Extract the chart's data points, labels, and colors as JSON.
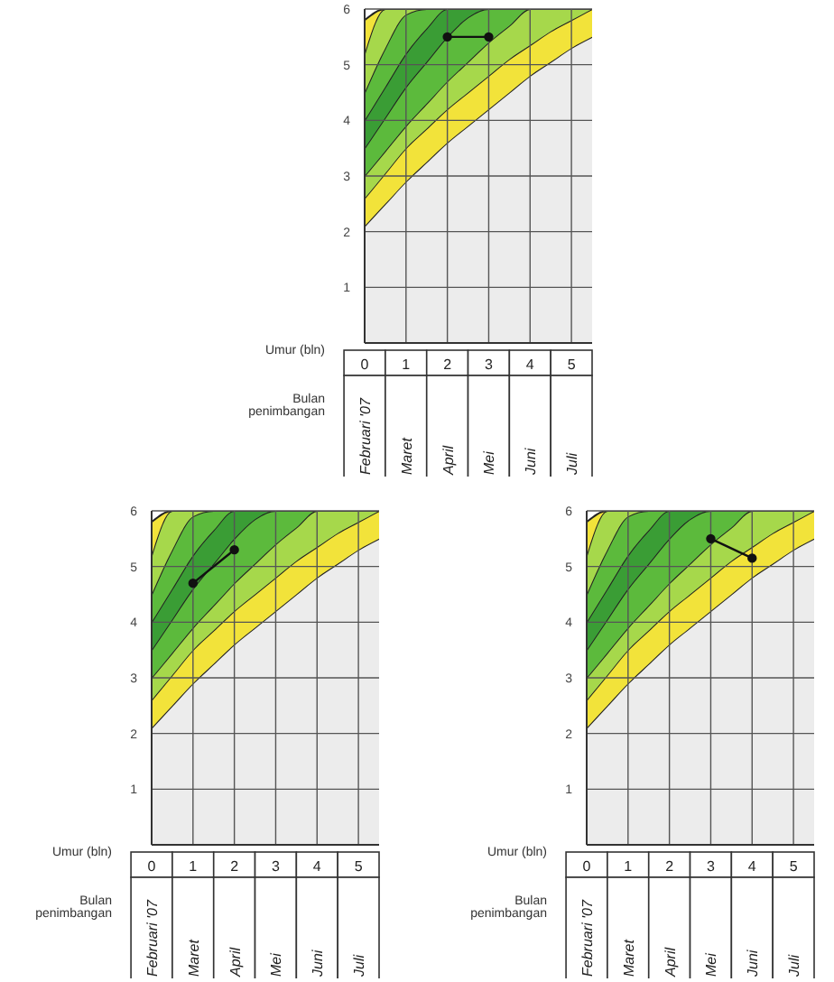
{
  "chart_data": [
    {
      "type": "area",
      "stacked": true,
      "xlabel": "Umur (bln)",
      "xlim": [
        0,
        5.5
      ],
      "xticks": [
        0,
        1,
        2,
        3,
        4,
        5
      ],
      "ylim": [
        0,
        6
      ],
      "yticks": [
        1,
        2,
        3,
        4,
        5,
        6
      ],
      "grid": true,
      "annotations": [
        "Bulan penimbangan",
        "Februari '07",
        "Maret",
        "April",
        "Mei",
        "Juni",
        "Juli"
      ],
      "x": [
        0,
        0.5,
        1,
        1.5,
        2,
        2.5,
        3,
        3.5,
        4,
        4.5,
        5,
        5.5
      ],
      "series": [
        {
          "color": "#ececec",
          "values": [
            2.1,
            2.5,
            2.9,
            3.25,
            3.6,
            3.9,
            4.2,
            4.5,
            4.8,
            5.05,
            5.3,
            5.5
          ]
        },
        {
          "color": "#f2e33a",
          "values": [
            0.5,
            0.55,
            0.6,
            0.6,
            0.6,
            0.6,
            0.6,
            0.6,
            0.55,
            0.55,
            0.5,
            0.5
          ]
        },
        {
          "color": "#a6d84b",
          "values": [
            0.4,
            0.4,
            0.4,
            0.45,
            0.5,
            0.55,
            0.6,
            0.6,
            0.65,
            0.4,
            0.2,
            0
          ]
        },
        {
          "color": "#5cba3c",
          "values": [
            0.5,
            0.6,
            0.7,
            0.75,
            0.8,
            0.8,
            0.6,
            0.3,
            0,
            0,
            0,
            0
          ]
        },
        {
          "color": "#3a9d35",
          "values": [
            0.5,
            0.55,
            0.6,
            0.6,
            0.5,
            0.15,
            0,
            0,
            0,
            0,
            0,
            0
          ]
        },
        {
          "color": "#5cba3c",
          "values": [
            0.5,
            0.7,
            0.7,
            0.35,
            0,
            0,
            0,
            0,
            0,
            0,
            0,
            0
          ]
        },
        {
          "color": "#a6d84b",
          "values": [
            0.7,
            0.7,
            0.1,
            0,
            0,
            0,
            0,
            0,
            0,
            0,
            0,
            0
          ]
        },
        {
          "color": "#f2e33a",
          "values": [
            0.6,
            0,
            0,
            0,
            0,
            0,
            0,
            0,
            0,
            0,
            0,
            0
          ]
        },
        {
          "type": "line",
          "color": "#111111",
          "marker": "circle",
          "x": [
            2,
            3
          ],
          "values": [
            5.5,
            5.5
          ]
        }
      ]
    },
    {
      "type": "area",
      "stacked": true,
      "xlabel": "Umur (bln)",
      "xlim": [
        0,
        5.5
      ],
      "xticks": [
        0,
        1,
        2,
        3,
        4,
        5
      ],
      "ylim": [
        0,
        6
      ],
      "yticks": [
        1,
        2,
        3,
        4,
        5,
        6
      ],
      "grid": true,
      "annotations": [
        "Bulan penimbangan",
        "Februari '07",
        "Maret",
        "April",
        "Mei",
        "Juni",
        "Juli"
      ],
      "x": [
        0,
        0.5,
        1,
        1.5,
        2,
        2.5,
        3,
        3.5,
        4,
        4.5,
        5,
        5.5
      ],
      "series": [
        {
          "color": "#ececec",
          "values": [
            2.1,
            2.5,
            2.9,
            3.25,
            3.6,
            3.9,
            4.2,
            4.5,
            4.8,
            5.05,
            5.3,
            5.5
          ]
        },
        {
          "color": "#f2e33a",
          "values": [
            0.5,
            0.55,
            0.6,
            0.6,
            0.6,
            0.6,
            0.6,
            0.6,
            0.55,
            0.55,
            0.5,
            0.5
          ]
        },
        {
          "color": "#a6d84b",
          "values": [
            0.4,
            0.4,
            0.4,
            0.45,
            0.5,
            0.55,
            0.6,
            0.6,
            0.65,
            0.4,
            0.2,
            0
          ]
        },
        {
          "color": "#5cba3c",
          "values": [
            0.5,
            0.6,
            0.7,
            0.75,
            0.8,
            0.8,
            0.6,
            0.3,
            0,
            0,
            0,
            0
          ]
        },
        {
          "color": "#3a9d35",
          "values": [
            0.5,
            0.55,
            0.6,
            0.6,
            0.5,
            0.15,
            0,
            0,
            0,
            0,
            0,
            0
          ]
        },
        {
          "color": "#5cba3c",
          "values": [
            0.5,
            0.7,
            0.7,
            0.35,
            0,
            0,
            0,
            0,
            0,
            0,
            0,
            0
          ]
        },
        {
          "color": "#a6d84b",
          "values": [
            0.7,
            0.7,
            0.1,
            0,
            0,
            0,
            0,
            0,
            0,
            0,
            0,
            0
          ]
        },
        {
          "color": "#f2e33a",
          "values": [
            0.6,
            0,
            0,
            0,
            0,
            0,
            0,
            0,
            0,
            0,
            0,
            0
          ]
        },
        {
          "type": "line",
          "color": "#111111",
          "marker": "circle",
          "x": [
            1,
            2
          ],
          "values": [
            4.7,
            5.3
          ]
        }
      ]
    },
    {
      "type": "area",
      "stacked": true,
      "xlabel": "Umur (bln)",
      "xlim": [
        0,
        5.5
      ],
      "xticks": [
        0,
        1,
        2,
        3,
        4,
        5
      ],
      "ylim": [
        0,
        6
      ],
      "yticks": [
        1,
        2,
        3,
        4,
        5,
        6
      ],
      "grid": true,
      "annotations": [
        "Bulan penimbangan",
        "Februari '07",
        "Maret",
        "April",
        "Mei",
        "Juni",
        "Juli"
      ],
      "x": [
        0,
        0.5,
        1,
        1.5,
        2,
        2.5,
        3,
        3.5,
        4,
        4.5,
        5,
        5.5
      ],
      "series": [
        {
          "color": "#ececec",
          "values": [
            2.1,
            2.5,
            2.9,
            3.25,
            3.6,
            3.9,
            4.2,
            4.5,
            4.8,
            5.05,
            5.3,
            5.5
          ]
        },
        {
          "color": "#f2e33a",
          "values": [
            0.5,
            0.55,
            0.6,
            0.6,
            0.6,
            0.6,
            0.6,
            0.6,
            0.55,
            0.55,
            0.5,
            0.5
          ]
        },
        {
          "color": "#a6d84b",
          "values": [
            0.4,
            0.4,
            0.4,
            0.45,
            0.5,
            0.55,
            0.6,
            0.6,
            0.65,
            0.4,
            0.2,
            0
          ]
        },
        {
          "color": "#5cba3c",
          "values": [
            0.5,
            0.6,
            0.7,
            0.75,
            0.8,
            0.8,
            0.6,
            0.3,
            0,
            0,
            0,
            0
          ]
        },
        {
          "color": "#3a9d35",
          "values": [
            0.5,
            0.55,
            0.6,
            0.6,
            0.5,
            0.15,
            0,
            0,
            0,
            0,
            0,
            0
          ]
        },
        {
          "color": "#5cba3c",
          "values": [
            0.5,
            0.7,
            0.7,
            0.35,
            0,
            0,
            0,
            0,
            0,
            0,
            0,
            0
          ]
        },
        {
          "color": "#a6d84b",
          "values": [
            0.7,
            0.7,
            0.1,
            0,
            0,
            0,
            0,
            0,
            0,
            0,
            0,
            0
          ]
        },
        {
          "color": "#f2e33a",
          "values": [
            0.6,
            0,
            0,
            0,
            0,
            0,
            0,
            0,
            0,
            0,
            0,
            0
          ]
        },
        {
          "type": "line",
          "color": "#111111",
          "marker": "circle",
          "x": [
            3,
            4
          ],
          "values": [
            5.5,
            5.15
          ]
        }
      ]
    }
  ]
}
